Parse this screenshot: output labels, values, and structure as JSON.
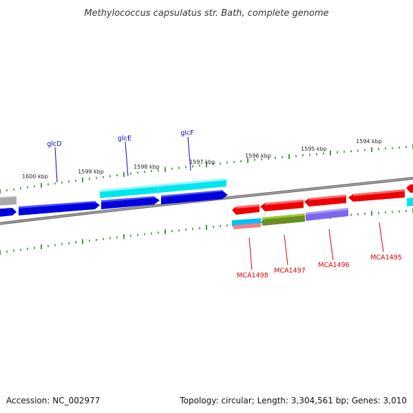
{
  "title": "Methylococcus capsulatus str. Bath, complete genome",
  "footer": {
    "accession": "Accession: NC_002977",
    "summary": "Topology: circular; Length: 3,304,561 bp; Genes: 3,010"
  },
  "colors": {
    "backbone": "#808080",
    "tick": "#1a7a1a",
    "forward_gene": "#0000dd",
    "reverse_gene": "#ee0000",
    "label_blue": "#0000cc",
    "label_red": "#dd0000",
    "cyan": "#00e5ee",
    "olive": "#6b8e23",
    "slate": "#7b68ee",
    "gray": "#a9a9a9"
  },
  "kbp_labels": [
    "1600 kbp",
    "1599 kbp",
    "1598 kbp",
    "1597 kbp",
    "1596 kbp",
    "1595 kbp",
    "1594 kbp"
  ],
  "forward_genes": [
    "glcD",
    "glcE",
    "glcF"
  ],
  "reverse_genes": [
    "MCA1498",
    "MCA1497",
    "MCA1496",
    "MCA1495"
  ]
}
